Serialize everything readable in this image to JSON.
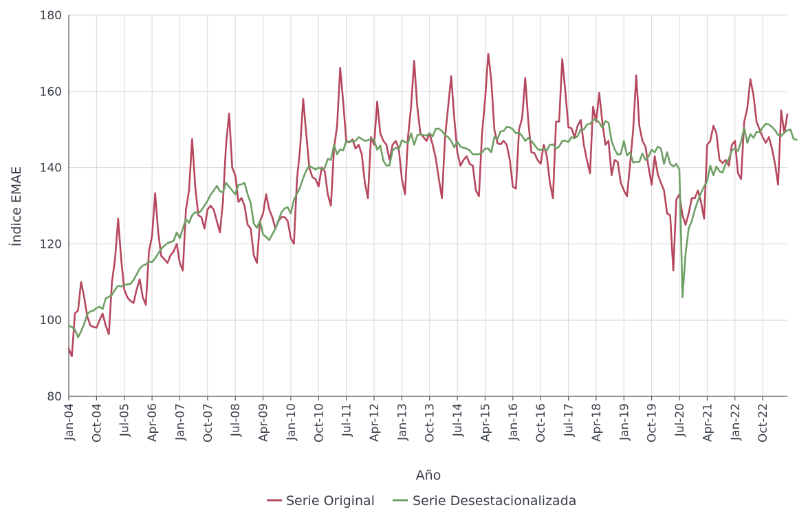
{
  "chart_data": {
    "type": "line",
    "title": "",
    "xlabel": "Año",
    "ylabel": "Índice EMAE",
    "ylim": [
      80,
      180
    ],
    "yticks": [
      80,
      100,
      120,
      140,
      160,
      180
    ],
    "x_start": "Jan-04",
    "x_end": "Apr-23",
    "xtick_labels": [
      "Jan-04",
      "Oct-04",
      "Jul-05",
      "Apr-06",
      "Jan-07",
      "Oct-07",
      "Jul-08",
      "Apr-09",
      "Jan-10",
      "Oct-10",
      "Jul-11",
      "Apr-12",
      "Jan-13",
      "Oct-13",
      "Jul-14",
      "Apr-15",
      "Jan-16",
      "Oct-16",
      "Jul-17",
      "Apr-18",
      "Jan-19",
      "Oct-19",
      "Jul-20",
      "Apr-21",
      "Jan-22",
      "Oct-22"
    ],
    "grid": true,
    "legend_position": "bottom-center",
    "series": [
      {
        "name": "Serie Original",
        "color": "#b5475e",
        "values": [
          92.5,
          90.5,
          101.8,
          102.5,
          110,
          106,
          101,
          98.6,
          98.2,
          98,
          100,
          101.7,
          98.5,
          96.3,
          110,
          116,
          126.6,
          116,
          108,
          106,
          105,
          104.5,
          108,
          110.7,
          106,
          104,
          118,
          122,
          133.3,
          123,
          116.8,
          116,
          115,
          117,
          118,
          120,
          115,
          113,
          129,
          134,
          147.5,
          135,
          127.5,
          127,
          124,
          129,
          130,
          129,
          126,
          123,
          131,
          146,
          154.2,
          140,
          138,
          131,
          132,
          130,
          125,
          124,
          117,
          115,
          126,
          128,
          133,
          129,
          127,
          124,
          126,
          127,
          127,
          126,
          121.5,
          120,
          137,
          145,
          158,
          149,
          140,
          137.5,
          137,
          135,
          140,
          139,
          133,
          130,
          145,
          151,
          166.2,
          157,
          146.8,
          146.6,
          147.4,
          145,
          146,
          143.5,
          136,
          132,
          148,
          146,
          157.3,
          149,
          147,
          146,
          142,
          146,
          147,
          145,
          137,
          133,
          148,
          156,
          168,
          156,
          149,
          148,
          147,
          149,
          146,
          142.5,
          137,
          132,
          148,
          156,
          164,
          153,
          144,
          140.5,
          142,
          143,
          141,
          140.5,
          134,
          132.5,
          149,
          158,
          169.9,
          163,
          150,
          146.4,
          146.1,
          147,
          146,
          142,
          135,
          134.5,
          150,
          153,
          163.5,
          152,
          144,
          143.8,
          142,
          141,
          146,
          143,
          136,
          132,
          152,
          152.1,
          168.5,
          160,
          150.6,
          150.3,
          148,
          151,
          152.5,
          146,
          142,
          138.5,
          156,
          152,
          159.6,
          152,
          146,
          147,
          138,
          142,
          141.5,
          136,
          134,
          132.5,
          141,
          150,
          164.2,
          151,
          147,
          145.5,
          140,
          135.5,
          143,
          138.2,
          136,
          134,
          128,
          127.5,
          113,
          131.6,
          133,
          127.5,
          125,
          128,
          132,
          132,
          134,
          131,
          126.6,
          146,
          147,
          151,
          149,
          142,
          141.2,
          142,
          140.5,
          146,
          147,
          138.5,
          137,
          152,
          155.5,
          163.2,
          159,
          152,
          150,
          148,
          146.5,
          148,
          145,
          141,
          135.5,
          155,
          149,
          154
        ]
      },
      {
        "name": "Serie Desestacionalizada",
        "color": "#6e9f65",
        "values": [
          98.5,
          98.2,
          97.5,
          95.5,
          97,
          99,
          101.5,
          102.3,
          102.5,
          103.2,
          103.5,
          102.9,
          105.7,
          106.1,
          106.6,
          108,
          109,
          108.8,
          109.2,
          109.4,
          109.5,
          110.5,
          112,
          113.5,
          114.3,
          114.6,
          115.4,
          115.2,
          116.2,
          117.5,
          118.7,
          119.5,
          120.2,
          120.5,
          120.8,
          123,
          121.5,
          124,
          126.5,
          125.5,
          127.5,
          128.3,
          128,
          128.8,
          130,
          131.3,
          132.9,
          134,
          135.2,
          133.8,
          133.5,
          136,
          135,
          134,
          133,
          135.5,
          135.6,
          136,
          133,
          130.7,
          125.3,
          124.2,
          126,
          122.5,
          121.8,
          121,
          122.5,
          124,
          126.2,
          128.3,
          129.3,
          129.6,
          128,
          131.5,
          133.2,
          134.8,
          137.3,
          139.2,
          140.5,
          140,
          139.5,
          140,
          139.6,
          139.9,
          142.3,
          142,
          146,
          143.5,
          144.8,
          144.5,
          147,
          146.8,
          147,
          147,
          148,
          147.5,
          147,
          147.2,
          147.5,
          147.3,
          144.7,
          145.8,
          141.8,
          140.5,
          140.6,
          144.5,
          145.2,
          144.8,
          147.2,
          146.7,
          146.5,
          149,
          146,
          148.5,
          148.7,
          148.5,
          148.4,
          149,
          148.2,
          150.2,
          150.2,
          149.6,
          148.5,
          148,
          147,
          145.3,
          146.8,
          145.5,
          145.2,
          145,
          144.5,
          143.5,
          143.5,
          143.5,
          144,
          145,
          145,
          144,
          148,
          147.5,
          149.5,
          149.6,
          150.7,
          150.6,
          150,
          149,
          149.2,
          148.3,
          147,
          147.8,
          147,
          146,
          144.9,
          144.6,
          145,
          144.5,
          146,
          146.1,
          145,
          145.5,
          147,
          147.1,
          146.7,
          148,
          147.7,
          148.3,
          150,
          150,
          151.3,
          151.5,
          152.5,
          152.6,
          151.8,
          150.5,
          152.2,
          151.8,
          147,
          144.8,
          143.4,
          143.6,
          147,
          143.2,
          144,
          141.3,
          141.5,
          141.5,
          143.7,
          142,
          143,
          144.7,
          144,
          145.5,
          145,
          141,
          144,
          141,
          140.3,
          141,
          139.5,
          106,
          117.5,
          124,
          126,
          129,
          131.3,
          133.4,
          135,
          136.5,
          140.5,
          138,
          140.3,
          139,
          138.7,
          141,
          142.3,
          144.5,
          145,
          144.4,
          146.8,
          150.5,
          146.5,
          148.8,
          147.8,
          149.4,
          149.3,
          150.5,
          151.5,
          151.3,
          150.7,
          149.8,
          148.6,
          148.3,
          149.2,
          149.8,
          150,
          147.5,
          147.3
        ]
      }
    ]
  }
}
